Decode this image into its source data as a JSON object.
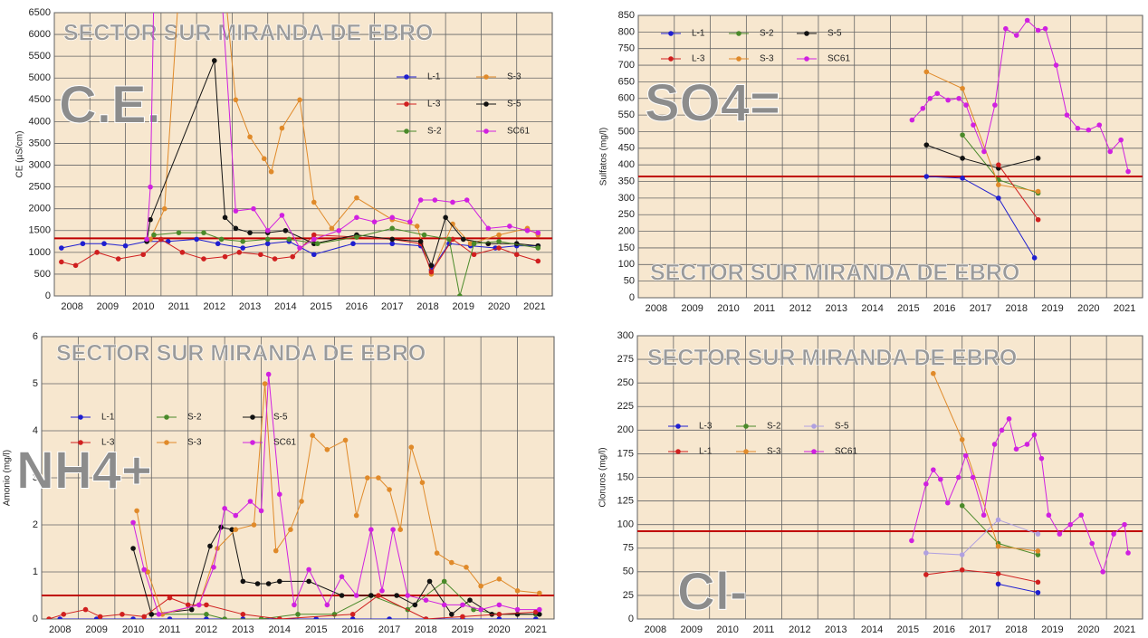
{
  "chart_data": [
    {
      "type": "line",
      "title": "SECTOR SUR MIRANDA DE EBRO",
      "annotation": "C.E.",
      "y_label": "CE (µS/cm)",
      "xlim": [
        2008,
        2022
      ],
      "xticks": [
        2008,
        2009,
        2010,
        2011,
        2012,
        2013,
        2014,
        2015,
        2016,
        2017,
        2018,
        2019,
        2020,
        2021
      ],
      "ylim": [
        0,
        6500
      ],
      "yticks": [
        0,
        500,
        1000,
        1500,
        2000,
        2500,
        3000,
        3500,
        4000,
        4500,
        5000,
        5500,
        6000,
        6500
      ],
      "grid": true,
      "reference_line": {
        "value": 1320,
        "color": "#c00000"
      },
      "series": [
        {
          "name": "L-1",
          "color": "#1f1fd0",
          "x": [
            2008.2,
            2008.8,
            2009.4,
            2010,
            2010.6,
            2011.2,
            2012,
            2012.6,
            2013.3,
            2014,
            2014.6,
            2015.3,
            2016.4,
            2017.5,
            2018.3,
            2018.6,
            2019.1,
            2019.7,
            2020.4,
            2021,
            2021.6
          ],
          "values": [
            1100,
            1200,
            1200,
            1150,
            1250,
            1250,
            1300,
            1200,
            1100,
            1200,
            1250,
            950,
            1200,
            1200,
            1150,
            600,
            1200,
            1150,
            1100,
            1150,
            1150
          ]
        },
        {
          "name": "S-3",
          "color": "#e08a2a",
          "x": [
            2010.7,
            2011.1,
            2011.5,
            2012.8,
            2013.1,
            2013.5,
            2013.9,
            2014.1,
            2014.4,
            2014.9,
            2015.3,
            2015.8,
            2016.5,
            2017.5,
            2018.2,
            2018.6,
            2019.2,
            2019.7,
            2020.5,
            2021.3,
            2021.6
          ],
          "values": [
            1300,
            2000,
            7000,
            7000,
            4500,
            3650,
            3150,
            2850,
            3850,
            4500,
            2150,
            1550,
            2250,
            1750,
            1600,
            500,
            1650,
            1200,
            1400,
            1550,
            1400
          ]
        },
        {
          "name": "L-3",
          "color": "#d01f1f",
          "x": [
            2008.2,
            2008.6,
            2009.2,
            2009.8,
            2010.5,
            2011,
            2011.6,
            2012.2,
            2012.8,
            2013.2,
            2013.8,
            2014.2,
            2014.7,
            2015.3,
            2016.5,
            2017.5,
            2018.3,
            2018.6,
            2019.2,
            2019.8,
            2020.5,
            2021,
            2021.6
          ],
          "values": [
            780,
            700,
            1000,
            850,
            950,
            1300,
            1000,
            850,
            900,
            1000,
            950,
            850,
            900,
            1400,
            1350,
            1300,
            1200,
            550,
            1300,
            950,
            1100,
            950,
            800
          ]
        },
        {
          "name": "S-5",
          "color": "#111111",
          "x": [
            2010.6,
            2010.7,
            2012.5,
            2012.8,
            2013.1,
            2013.5,
            2014,
            2014.5,
            2015.3,
            2016.5,
            2017.5,
            2018.3,
            2018.6,
            2019,
            2019.5,
            2020.2,
            2021,
            2021.6
          ],
          "values": [
            1250,
            1750,
            5400,
            1800,
            1550,
            1450,
            1450,
            1500,
            1200,
            1400,
            1300,
            1250,
            700,
            1800,
            1300,
            1200,
            1200,
            1150
          ]
        },
        {
          "name": "S-2",
          "color": "#4a8a2a",
          "x": [
            2010.8,
            2011.5,
            2012.2,
            2012.7,
            2013.3,
            2014,
            2014.6,
            2015.4,
            2016.5,
            2017.5,
            2018.4,
            2019.1,
            2019.4,
            2019.8,
            2020.5,
            2021.6
          ],
          "values": [
            1400,
            1450,
            1450,
            1300,
            1250,
            1300,
            1300,
            1200,
            1350,
            1550,
            1400,
            1300,
            0,
            1200,
            1250,
            1100
          ]
        },
        {
          "name": "SC61",
          "color": "#d020e0",
          "x": [
            2010.6,
            2010.7,
            2010.8,
            2012.7,
            2013.1,
            2013.6,
            2014,
            2014.4,
            2014.9,
            2015.3,
            2016,
            2016.5,
            2017,
            2017.5,
            2018,
            2018.3,
            2018.7,
            2019.2,
            2019.6,
            2020.2,
            2020.8,
            2021.3,
            2021.6
          ],
          "values": [
            1300,
            2500,
            7000,
            7000,
            1950,
            2000,
            1500,
            1850,
            1100,
            1300,
            1500,
            1800,
            1700,
            1800,
            1700,
            2200,
            2200,
            2150,
            2200,
            1550,
            1600,
            1500,
            1450
          ]
        }
      ]
    },
    {
      "type": "line",
      "title": "SECTOR SUR MIRANDA DE EBRO",
      "annotation": "SO4=",
      "y_label": "Sulfatos (mg/l)",
      "xlim": [
        2008,
        2022
      ],
      "xticks": [
        2008,
        2009,
        2010,
        2011,
        2012,
        2013,
        2014,
        2015,
        2016,
        2017,
        2018,
        2019,
        2020,
        2021
      ],
      "ylim": [
        0,
        850
      ],
      "yticks": [
        0,
        50,
        100,
        150,
        200,
        250,
        300,
        350,
        400,
        450,
        500,
        550,
        600,
        650,
        700,
        750,
        800,
        850
      ],
      "grid": true,
      "reference_line": {
        "value": 365,
        "color": "#c00000"
      },
      "series": [
        {
          "name": "L-1",
          "color": "#1f1fd0",
          "x": [
            2016,
            2017,
            2018,
            2019
          ],
          "values": [
            365,
            360,
            300,
            120
          ]
        },
        {
          "name": "S-2",
          "color": "#4a8a2a",
          "x": [
            2017,
            2018,
            2019.1
          ],
          "values": [
            490,
            355,
            315
          ]
        },
        {
          "name": "S-5",
          "color": "#111111",
          "x": [
            2016,
            2017,
            2018,
            2019.1
          ],
          "values": [
            460,
            420,
            390,
            420
          ]
        },
        {
          "name": "L-3",
          "color": "#d01f1f",
          "x": [
            2018,
            2019.1
          ],
          "values": [
            400,
            235
          ]
        },
        {
          "name": "S-3",
          "color": "#e08a2a",
          "x": [
            2016,
            2017,
            2018,
            2019.1
          ],
          "values": [
            680,
            630,
            340,
            320
          ]
        },
        {
          "name": "SC61",
          "color": "#d020e0",
          "x": [
            2015.6,
            2015.9,
            2016.1,
            2016.3,
            2016.6,
            2016.9,
            2017.1,
            2017.3,
            2017.6,
            2017.9,
            2018.2,
            2018.5,
            2018.8,
            2019.1,
            2019.3,
            2019.6,
            2019.9,
            2020.2,
            2020.5,
            2020.8,
            2021.1,
            2021.4,
            2021.6
          ],
          "values": [
            535,
            570,
            600,
            615,
            595,
            600,
            580,
            520,
            440,
            580,
            810,
            790,
            835,
            805,
            810,
            700,
            550,
            510,
            505,
            520,
            440,
            475,
            380
          ]
        }
      ]
    },
    {
      "type": "line",
      "title": "SECTOR SUR MIRANDA DE EBRO",
      "annotation": "NH4+",
      "y_label": "Amonio (mg/l)",
      "xlim": [
        2008,
        2022
      ],
      "xticks": [
        2008,
        2009,
        2010,
        2011,
        2012,
        2013,
        2014,
        2015,
        2016,
        2017,
        2018,
        2019,
        2020,
        2021
      ],
      "ylim": [
        0,
        6
      ],
      "yticks": [
        0,
        1,
        2,
        3,
        4,
        5,
        6
      ],
      "grid": true,
      "reference_line": {
        "value": 0.5,
        "color": "#c00000"
      },
      "series": [
        {
          "name": "L-1",
          "color": "#1f1fd0",
          "x": [
            2008.5,
            2009.5,
            2010.5,
            2011.5,
            2012.5,
            2013.5,
            2014.5,
            2015.5,
            2016.5,
            2017.5,
            2018.5,
            2019.5,
            2020.5,
            2021.5
          ],
          "values": [
            0,
            0,
            0,
            0,
            0,
            0,
            0,
            0,
            0,
            0,
            0,
            0,
            0,
            0
          ]
        },
        {
          "name": "S-2",
          "color": "#4a8a2a",
          "x": [
            2011,
            2012.5,
            2013,
            2014,
            2015,
            2016,
            2017,
            2018,
            2019,
            2019.8,
            2020.5,
            2021.5
          ],
          "values": [
            0.1,
            0.1,
            0,
            0,
            0.1,
            0.1,
            0.5,
            0.2,
            0.8,
            0.2,
            0.1,
            0.1
          ]
        },
        {
          "name": "S-5",
          "color": "#111111",
          "x": [
            2010.5,
            2011,
            2012.1,
            2012.6,
            2012.9,
            2013.2,
            2013.5,
            2013.9,
            2014.2,
            2014.5,
            2015.3,
            2016.2,
            2017,
            2017.7,
            2018.2,
            2018.6,
            2019.2,
            2019.7,
            2020.3,
            2021,
            2021.6
          ],
          "values": [
            1.5,
            0.1,
            0.2,
            1.55,
            1.95,
            1.9,
            0.8,
            0.75,
            0.75,
            0.8,
            0.8,
            0.5,
            0.5,
            0.5,
            0.3,
            0.8,
            0.1,
            0.4,
            0.1,
            0.1,
            0.1
          ]
        },
        {
          "name": "L-3",
          "color": "#d01f1f",
          "x": [
            2008.2,
            2008.6,
            2009.2,
            2009.6,
            2010.2,
            2010.8,
            2011.5,
            2012,
            2012.5,
            2013.5,
            2014.5,
            2016.5,
            2017.2,
            2018.5,
            2019.5,
            2020.5,
            2021.5
          ],
          "values": [
            0,
            0.1,
            0.2,
            0.05,
            0.1,
            0.05,
            0.45,
            0.3,
            0.3,
            0.1,
            0,
            0.1,
            0.5,
            0,
            0.05,
            0.1,
            0.15
          ]
        },
        {
          "name": "S-3",
          "color": "#e08a2a",
          "x": [
            2010.6,
            2010.9,
            2011.3,
            2012.3,
            2012.8,
            2013.3,
            2013.8,
            2014.1,
            2014.4,
            2014.8,
            2015.1,
            2015.4,
            2015.8,
            2016.3,
            2016.6,
            2016.9,
            2017.2,
            2017.5,
            2017.8,
            2018.1,
            2018.4,
            2018.8,
            2019.2,
            2019.6,
            2020,
            2020.5,
            2021,
            2021.6
          ],
          "values": [
            2.3,
            1.0,
            0.1,
            0.3,
            1.5,
            1.9,
            2.0,
            5.0,
            1.45,
            1.9,
            2.5,
            3.9,
            3.6,
            3.8,
            2.2,
            3.0,
            3.0,
            2.75,
            1.9,
            3.65,
            2.9,
            1.4,
            1.2,
            1.1,
            0.7,
            0.85,
            0.6,
            0.55
          ]
        },
        {
          "name": "SC61",
          "color": "#d020e0",
          "x": [
            2010.5,
            2010.8,
            2011.2,
            2012.3,
            2012.7,
            2013,
            2013.3,
            2013.7,
            2014,
            2014.2,
            2014.5,
            2014.9,
            2015.3,
            2015.8,
            2016.2,
            2016.6,
            2017,
            2017.3,
            2017.6,
            2018,
            2018.5,
            2019,
            2019.5,
            2020,
            2020.5,
            2021,
            2021.6
          ],
          "values": [
            2.05,
            1.05,
            0.1,
            0.3,
            1.1,
            2.35,
            2.2,
            2.5,
            2.3,
            5.2,
            2.65,
            0.3,
            1.05,
            0.3,
            0.9,
            0.5,
            1.9,
            0.6,
            1.9,
            0.5,
            0.4,
            0.3,
            0.3,
            0.2,
            0.3,
            0.2,
            0.2
          ]
        }
      ]
    },
    {
      "type": "line",
      "title": "SECTOR SUR MIRANDA DE EBRO",
      "annotation": "Cl-",
      "y_label": "Cloruros (mg/l)",
      "xlim": [
        2008,
        2022
      ],
      "xticks": [
        2008,
        2009,
        2010,
        2011,
        2012,
        2013,
        2014,
        2015,
        2016,
        2017,
        2018,
        2019,
        2020,
        2021
      ],
      "ylim": [
        0,
        300
      ],
      "yticks": [
        0,
        25,
        50,
        75,
        100,
        125,
        150,
        175,
        200,
        225,
        250,
        275,
        300
      ],
      "grid": true,
      "reference_line": {
        "value": 93,
        "color": "#c00000"
      },
      "series": [
        {
          "name": "L-3",
          "color": "#1f1fd0",
          "x": [
            2018,
            2019.1
          ],
          "values": [
            37,
            28
          ]
        },
        {
          "name": "S-2",
          "color": "#4a8a2a",
          "x": [
            2017,
            2018,
            2019.1
          ],
          "values": [
            120,
            80,
            68
          ]
        },
        {
          "name": "S-5",
          "color": "#b0a0e0",
          "x": [
            2016,
            2017,
            2018,
            2019.1
          ],
          "values": [
            70,
            68,
            105,
            90
          ]
        },
        {
          "name": "L-1",
          "color": "#d01f1f",
          "x": [
            2016,
            2017,
            2018,
            2019.1
          ],
          "values": [
            47,
            52,
            48,
            39
          ]
        },
        {
          "name": "S-3",
          "color": "#e08a2a",
          "x": [
            2016.2,
            2017,
            2018,
            2019.1
          ],
          "values": [
            260,
            190,
            77,
            72
          ]
        },
        {
          "name": "SC61",
          "color": "#d020e0",
          "x": [
            2015.6,
            2016,
            2016.2,
            2016.4,
            2016.6,
            2016.9,
            2017.1,
            2017.3,
            2017.6,
            2017.9,
            2018.1,
            2018.3,
            2018.5,
            2018.8,
            2019,
            2019.2,
            2019.4,
            2019.7,
            2020,
            2020.3,
            2020.6,
            2020.9,
            2021.2,
            2021.5,
            2021.6
          ],
          "values": [
            83,
            143,
            158,
            148,
            123,
            150,
            173,
            150,
            110,
            185,
            200,
            212,
            180,
            185,
            195,
            170,
            110,
            90,
            100,
            110,
            80,
            50,
            90,
            100,
            70
          ]
        }
      ]
    }
  ]
}
